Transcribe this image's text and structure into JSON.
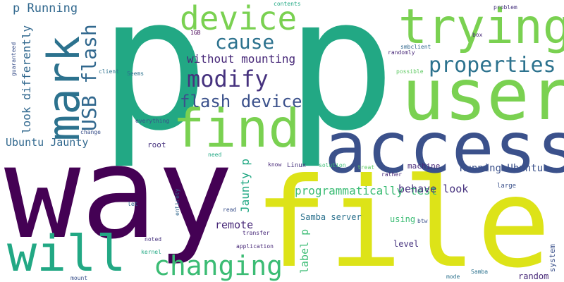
{
  "words": [
    {
      "text": "p",
      "color": "#22a884"
    },
    {
      "text": "p",
      "color": "#22a884"
    },
    {
      "text": "way",
      "color": "#440154"
    },
    {
      "text": "file",
      "color": "#dde318"
    },
    {
      "text": "access",
      "color": "#3b518b"
    },
    {
      "text": "user",
      "color": "#7ad151"
    },
    {
      "text": "find",
      "color": "#7ad151"
    },
    {
      "text": "trying",
      "color": "#7ad151"
    },
    {
      "text": "mark",
      "color": "#2c728e"
    },
    {
      "text": "will",
      "color": "#22a884"
    },
    {
      "text": "device",
      "color": "#7ad151"
    },
    {
      "text": "changing",
      "color": "#3bbc74"
    },
    {
      "text": "modify",
      "color": "#46327e"
    },
    {
      "text": "USB flash",
      "color": "#31688e"
    },
    {
      "text": "properties",
      "color": "#2c728e"
    },
    {
      "text": "flash device",
      "color": "#3b518b"
    },
    {
      "text": "cause",
      "color": "#2c728e"
    },
    {
      "text": "without mounting",
      "color": "#472878"
    },
    {
      "text": "p Running",
      "color": "#31688e"
    },
    {
      "text": "look differently",
      "color": "#31688e"
    },
    {
      "text": "Ubuntu Jaunty",
      "color": "#31688e"
    },
    {
      "text": "programmatically test",
      "color": "#3bbc74"
    },
    {
      "text": "behave look",
      "color": "#46327e"
    },
    {
      "text": "Running Ubuntu",
      "color": "#3b518b"
    },
    {
      "text": "Jaunty p",
      "color": "#22a884"
    },
    {
      "text": "remote",
      "color": "#472878"
    },
    {
      "text": "label p",
      "color": "#3bbc74"
    },
    {
      "text": "Samba server",
      "color": "#2c728e"
    },
    {
      "text": "root",
      "color": "#46327e"
    },
    {
      "text": "machine",
      "color": "#472878"
    },
    {
      "text": "using",
      "color": "#3bbc74"
    },
    {
      "text": "level",
      "color": "#46327e"
    },
    {
      "text": "random",
      "color": "#472878"
    },
    {
      "text": "system",
      "color": "#3b518b"
    },
    {
      "text": "large",
      "color": "#3b518b"
    },
    {
      "text": "Linux",
      "color": "#46327e"
    },
    {
      "text": "know",
      "color": "#472878"
    },
    {
      "text": "solution",
      "color": "#3bbc74"
    },
    {
      "text": "treat",
      "color": "#5ec962"
    },
    {
      "text": "rather",
      "color": "#472878"
    },
    {
      "text": "1GB",
      "color": "#440154"
    },
    {
      "text": "contents",
      "color": "#22a884"
    },
    {
      "text": "problem",
      "color": "#46327e"
    },
    {
      "text": "box",
      "color": "#472878"
    },
    {
      "text": "smbclient",
      "color": "#31688e"
    },
    {
      "text": "randomly",
      "color": "#472878"
    },
    {
      "text": "possible",
      "color": "#5ec962"
    },
    {
      "text": "client",
      "color": "#2c728e"
    },
    {
      "text": "Seems",
      "color": "#2c728e"
    },
    {
      "text": "guaranteed",
      "color": "#3b518b"
    },
    {
      "text": "change",
      "color": "#3b518b"
    },
    {
      "text": "everything",
      "color": "#3b518b"
    },
    {
      "text": "need",
      "color": "#22a884"
    },
    {
      "text": "let",
      "color": "#31688e"
    },
    {
      "text": "entirety",
      "color": "#31688e"
    },
    {
      "text": "read",
      "color": "#3b518b"
    },
    {
      "text": "noted",
      "color": "#46327e"
    },
    {
      "text": "transfer",
      "color": "#472878"
    },
    {
      "text": "application",
      "color": "#472878"
    },
    {
      "text": "kernel",
      "color": "#22a884"
    },
    {
      "text": "btw",
      "color": "#3b518b"
    },
    {
      "text": "mount",
      "color": "#3b518b"
    },
    {
      "text": "mode",
      "color": "#2c728e"
    },
    {
      "text": "Samba",
      "color": "#2c728e"
    }
  ]
}
